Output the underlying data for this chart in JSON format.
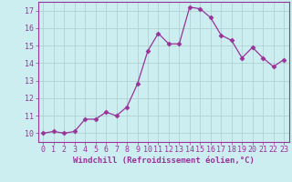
{
  "x": [
    0,
    1,
    2,
    3,
    4,
    5,
    6,
    7,
    8,
    9,
    10,
    11,
    12,
    13,
    14,
    15,
    16,
    17,
    18,
    19,
    20,
    21,
    22,
    23
  ],
  "y": [
    10.0,
    10.1,
    10.0,
    10.1,
    10.8,
    10.8,
    11.2,
    11.0,
    11.5,
    12.8,
    14.7,
    15.7,
    15.1,
    15.1,
    17.2,
    17.1,
    16.6,
    15.6,
    15.3,
    14.3,
    14.9,
    14.3,
    13.8,
    14.2
  ],
  "line_color": "#993399",
  "marker": "D",
  "markersize": 2.5,
  "linewidth": 0.9,
  "bg_color": "#cceef0",
  "grid_color": "#aacccc",
  "xlabel": "Windchill (Refroidissement éolien,°C)",
  "xlim": [
    -0.5,
    23.5
  ],
  "ylim": [
    9.5,
    17.5
  ],
  "yticks": [
    10,
    11,
    12,
    13,
    14,
    15,
    16,
    17
  ],
  "xticks": [
    0,
    1,
    2,
    3,
    4,
    5,
    6,
    7,
    8,
    9,
    10,
    11,
    12,
    13,
    14,
    15,
    16,
    17,
    18,
    19,
    20,
    21,
    22,
    23
  ],
  "tick_color": "#993399",
  "label_color": "#993399",
  "axis_color": "#993399",
  "xlabel_fontsize": 6.5,
  "tick_fontsize": 6.0
}
